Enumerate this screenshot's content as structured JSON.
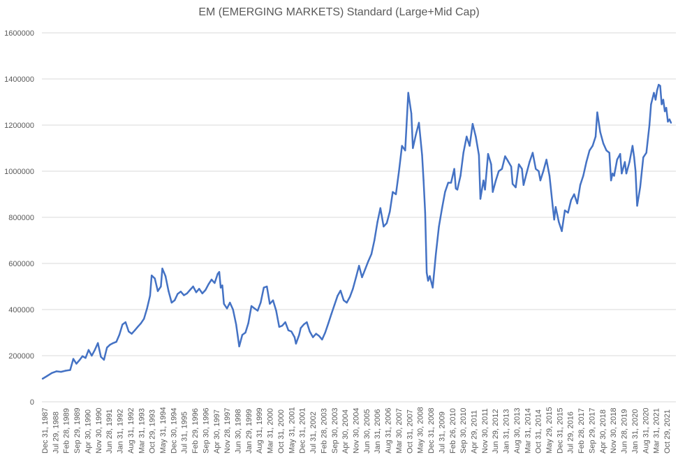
{
  "chart_data": {
    "type": "line",
    "title": "EM (EMERGING MARKETS) Standard (Large+Mid Cap)",
    "xlabel": "",
    "ylabel": "",
    "ylim": [
      0,
      1600000
    ],
    "grid": true,
    "legend": "none",
    "y_ticks": [
      "0",
      "200000",
      "400000",
      "600000",
      "800000",
      "1000000",
      "1200000",
      "1400000",
      "1600000"
    ],
    "x_ticks": [
      "Dec 31, 1987",
      "Jul 29, 1988",
      "Feb 28, 1989",
      "Sep 29, 1989",
      "Apr 30, 1990",
      "Nov 30, 1990",
      "Jun 28, 1991",
      "Jan 31, 1992",
      "Aug 31, 1992",
      "Mar 31, 1993",
      "Oct 29, 1993",
      "May 31, 1994",
      "Dec 30, 1994",
      "Jul 31, 1995",
      "Feb 29, 1996",
      "Sep 30, 1996",
      "Apr 30, 1997",
      "Nov 28, 1997",
      "Jun 30, 1998",
      "Jan 29, 1999",
      "Aug 31, 1999",
      "Mar 31, 2000",
      "Oct 31, 2000",
      "May 31, 2001",
      "Dec 31, 2001",
      "Jul 31, 2002",
      "Feb 28, 2003",
      "Sep 30, 2003",
      "Apr 30, 2004",
      "Nov 30, 2004",
      "Jun 30, 2005",
      "Jan 31, 2006",
      "Aug 31, 2006",
      "Mar 30, 2007",
      "Oct 31, 2007",
      "May 30, 2008",
      "Dec 31, 2008",
      "Jul 31, 2009",
      "Feb 26, 2010",
      "Sep 30, 2010",
      "Apr 29, 2011",
      "Nov 30, 2011",
      "Jun 29, 2012",
      "Jan 31, 2013",
      "Aug 30, 2013",
      "Mar 31, 2014",
      "Oct 31, 2014",
      "May 29, 2015",
      "Dec 31, 2015",
      "Jul 29, 2016",
      "Feb 28, 2017",
      "Sep 29, 2017",
      "Apr 30, 2018",
      "Nov 30, 2018",
      "Jun 28, 2019",
      "Jan 31, 2020",
      "Aug 31, 2020",
      "Mar 31, 2021",
      "Oct 29, 2021"
    ],
    "series": [
      {
        "color": "#4472c4",
        "points": [
          [
            "1987-12-31",
            100000
          ],
          [
            "1988-03-31",
            112000
          ],
          [
            "1988-06-30",
            125000
          ],
          [
            "1988-09-30",
            132000
          ],
          [
            "1988-12-30",
            130000
          ],
          [
            "1989-03-31",
            135000
          ],
          [
            "1989-06-30",
            138000
          ],
          [
            "1989-08-31",
            186000
          ],
          [
            "1989-10-31",
            165000
          ],
          [
            "1989-12-29",
            180000
          ],
          [
            "1990-02-28",
            198000
          ],
          [
            "1990-04-30",
            190000
          ],
          [
            "1990-06-29",
            225000
          ],
          [
            "1990-08-31",
            200000
          ],
          [
            "1990-10-31",
            225000
          ],
          [
            "1990-12-31",
            255000
          ],
          [
            "1991-02-28",
            195000
          ],
          [
            "1991-04-30",
            182000
          ],
          [
            "1991-06-28",
            235000
          ],
          [
            "1991-08-30",
            248000
          ],
          [
            "1991-10-31",
            255000
          ],
          [
            "1991-12-31",
            260000
          ],
          [
            "1992-02-28",
            290000
          ],
          [
            "1992-04-30",
            335000
          ],
          [
            "1992-06-30",
            345000
          ],
          [
            "1992-08-31",
            305000
          ],
          [
            "1992-10-30",
            295000
          ],
          [
            "1992-12-31",
            310000
          ],
          [
            "1993-02-26",
            325000
          ],
          [
            "1993-04-30",
            340000
          ],
          [
            "1993-06-30",
            360000
          ],
          [
            "1993-08-31",
            405000
          ],
          [
            "1993-10-29",
            460000
          ],
          [
            "1993-11-30",
            548000
          ],
          [
            "1994-01-31",
            535000
          ],
          [
            "1994-03-31",
            480000
          ],
          [
            "1994-05-31",
            500000
          ],
          [
            "1994-06-30",
            578000
          ],
          [
            "1994-08-31",
            545000
          ],
          [
            "1994-10-31",
            480000
          ],
          [
            "1994-12-30",
            430000
          ],
          [
            "1995-02-28",
            440000
          ],
          [
            "1995-04-28",
            468000
          ],
          [
            "1995-06-30",
            478000
          ],
          [
            "1995-08-31",
            462000
          ],
          [
            "1995-10-31",
            470000
          ],
          [
            "1995-12-29",
            485000
          ],
          [
            "1996-02-29",
            500000
          ],
          [
            "1996-04-30",
            475000
          ],
          [
            "1996-06-28",
            490000
          ],
          [
            "1996-08-30",
            470000
          ],
          [
            "1996-10-31",
            485000
          ],
          [
            "1996-12-31",
            510000
          ],
          [
            "1997-02-28",
            530000
          ],
          [
            "1997-04-30",
            515000
          ],
          [
            "1997-06-30",
            555000
          ],
          [
            "1997-07-31",
            563000
          ],
          [
            "1997-08-29",
            495000
          ],
          [
            "1997-09-30",
            505000
          ],
          [
            "1997-10-31",
            425000
          ],
          [
            "1997-12-31",
            405000
          ],
          [
            "1998-02-27",
            430000
          ],
          [
            "1998-04-30",
            400000
          ],
          [
            "1998-06-30",
            335000
          ],
          [
            "1998-08-31",
            240000
          ],
          [
            "1998-10-30",
            290000
          ],
          [
            "1998-12-31",
            300000
          ],
          [
            "1999-02-26",
            340000
          ],
          [
            "1999-04-30",
            415000
          ],
          [
            "1999-06-30",
            405000
          ],
          [
            "1999-08-31",
            395000
          ],
          [
            "1999-10-29",
            430000
          ],
          [
            "1999-12-31",
            495000
          ],
          [
            "2000-02-29",
            500000
          ],
          [
            "2000-04-28",
            425000
          ],
          [
            "2000-06-30",
            440000
          ],
          [
            "2000-08-31",
            395000
          ],
          [
            "2000-10-31",
            325000
          ],
          [
            "2000-12-29",
            330000
          ],
          [
            "2001-02-28",
            345000
          ],
          [
            "2001-04-30",
            310000
          ],
          [
            "2001-06-29",
            305000
          ],
          [
            "2001-08-31",
            280000
          ],
          [
            "2001-09-28",
            252000
          ],
          [
            "2001-11-30",
            290000
          ],
          [
            "2001-12-31",
            320000
          ],
          [
            "2002-02-28",
            335000
          ],
          [
            "2002-04-30",
            345000
          ],
          [
            "2002-06-28",
            305000
          ],
          [
            "2002-08-30",
            280000
          ],
          [
            "2002-10-31",
            295000
          ],
          [
            "2002-12-31",
            285000
          ],
          [
            "2003-02-28",
            270000
          ],
          [
            "2003-04-30",
            300000
          ],
          [
            "2003-06-30",
            340000
          ],
          [
            "2003-08-29",
            380000
          ],
          [
            "2003-10-31",
            420000
          ],
          [
            "2003-12-31",
            460000
          ],
          [
            "2004-02-27",
            482000
          ],
          [
            "2004-04-30",
            440000
          ],
          [
            "2004-06-30",
            430000
          ],
          [
            "2004-08-31",
            455000
          ],
          [
            "2004-10-29",
            490000
          ],
          [
            "2004-12-31",
            540000
          ],
          [
            "2005-02-28",
            590000
          ],
          [
            "2005-04-29",
            540000
          ],
          [
            "2005-06-30",
            575000
          ],
          [
            "2005-08-31",
            610000
          ],
          [
            "2005-10-31",
            640000
          ],
          [
            "2005-12-30",
            700000
          ],
          [
            "2006-02-28",
            780000
          ],
          [
            "2006-04-28",
            840000
          ],
          [
            "2006-06-30",
            760000
          ],
          [
            "2006-08-31",
            775000
          ],
          [
            "2006-10-31",
            825000
          ],
          [
            "2006-12-29",
            910000
          ],
          [
            "2007-02-28",
            900000
          ],
          [
            "2007-04-30",
            1000000
          ],
          [
            "2007-06-29",
            1110000
          ],
          [
            "2007-08-31",
            1090000
          ],
          [
            "2007-10-31",
            1340000
          ],
          [
            "2007-12-31",
            1250000
          ],
          [
            "2008-01-31",
            1100000
          ],
          [
            "2008-03-31",
            1160000
          ],
          [
            "2008-05-30",
            1210000
          ],
          [
            "2008-07-31",
            1070000
          ],
          [
            "2008-08-29",
            960000
          ],
          [
            "2008-09-30",
            820000
          ],
          [
            "2008-10-31",
            560000
          ],
          [
            "2008-11-28",
            525000
          ],
          [
            "2008-12-31",
            545000
          ],
          [
            "2009-02-27",
            495000
          ],
          [
            "2009-04-30",
            640000
          ],
          [
            "2009-06-30",
            760000
          ],
          [
            "2009-08-31",
            840000
          ],
          [
            "2009-10-30",
            910000
          ],
          [
            "2009-12-31",
            950000
          ],
          [
            "2010-02-26",
            950000
          ],
          [
            "2010-04-30",
            1010000
          ],
          [
            "2010-05-31",
            925000
          ],
          [
            "2010-06-30",
            920000
          ],
          [
            "2010-08-31",
            980000
          ],
          [
            "2010-10-29",
            1080000
          ],
          [
            "2010-12-31",
            1150000
          ],
          [
            "2011-02-28",
            1110000
          ],
          [
            "2011-04-29",
            1205000
          ],
          [
            "2011-06-30",
            1150000
          ],
          [
            "2011-08-31",
            1070000
          ],
          [
            "2011-09-30",
            880000
          ],
          [
            "2011-11-30",
            960000
          ],
          [
            "2011-12-30",
            920000
          ],
          [
            "2012-02-29",
            1075000
          ],
          [
            "2012-04-30",
            1030000
          ],
          [
            "2012-05-31",
            910000
          ],
          [
            "2012-07-31",
            960000
          ],
          [
            "2012-09-28",
            1000000
          ],
          [
            "2012-11-30",
            1010000
          ],
          [
            "2013-01-31",
            1065000
          ],
          [
            "2013-03-28",
            1045000
          ],
          [
            "2013-05-31",
            1020000
          ],
          [
            "2013-06-28",
            945000
          ],
          [
            "2013-08-30",
            930000
          ],
          [
            "2013-10-31",
            1030000
          ],
          [
            "2013-12-31",
            1010000
          ],
          [
            "2014-01-31",
            940000
          ],
          [
            "2014-03-31",
            990000
          ],
          [
            "2014-05-30",
            1040000
          ],
          [
            "2014-07-31",
            1080000
          ],
          [
            "2014-09-30",
            1010000
          ],
          [
            "2014-11-28",
            1000000
          ],
          [
            "2014-12-31",
            960000
          ],
          [
            "2015-02-27",
            1000000
          ],
          [
            "2015-04-30",
            1050000
          ],
          [
            "2015-06-30",
            980000
          ],
          [
            "2015-08-31",
            850000
          ],
          [
            "2015-09-30",
            790000
          ],
          [
            "2015-10-30",
            845000
          ],
          [
            "2015-12-31",
            780000
          ],
          [
            "2016-02-29",
            740000
          ],
          [
            "2016-04-29",
            830000
          ],
          [
            "2016-06-30",
            820000
          ],
          [
            "2016-08-31",
            875000
          ],
          [
            "2016-10-31",
            900000
          ],
          [
            "2016-12-30",
            860000
          ],
          [
            "2017-02-28",
            940000
          ],
          [
            "2017-04-28",
            980000
          ],
          [
            "2017-06-30",
            1040000
          ],
          [
            "2017-08-31",
            1090000
          ],
          [
            "2017-10-31",
            1110000
          ],
          [
            "2017-12-29",
            1150000
          ],
          [
            "2018-01-31",
            1255000
          ],
          [
            "2018-03-30",
            1170000
          ],
          [
            "2018-05-31",
            1120000
          ],
          [
            "2018-07-31",
            1090000
          ],
          [
            "2018-09-28",
            1080000
          ],
          [
            "2018-10-31",
            960000
          ],
          [
            "2018-11-30",
            990000
          ],
          [
            "2018-12-31",
            980000
          ],
          [
            "2019-02-28",
            1050000
          ],
          [
            "2019-04-30",
            1075000
          ],
          [
            "2019-05-31",
            990000
          ],
          [
            "2019-07-31",
            1040000
          ],
          [
            "2019-08-30",
            990000
          ],
          [
            "2019-10-31",
            1040000
          ],
          [
            "2019-12-31",
            1110000
          ],
          [
            "2020-01-31",
            1060000
          ],
          [
            "2020-02-28",
            1000000
          ],
          [
            "2020-03-31",
            850000
          ],
          [
            "2020-05-29",
            930000
          ],
          [
            "2020-07-31",
            1060000
          ],
          [
            "2020-09-30",
            1080000
          ],
          [
            "2020-11-30",
            1200000
          ],
          [
            "2020-12-31",
            1290000
          ],
          [
            "2021-02-26",
            1340000
          ],
          [
            "2021-03-31",
            1310000
          ],
          [
            "2021-04-30",
            1350000
          ],
          [
            "2021-05-31",
            1375000
          ],
          [
            "2021-06-30",
            1370000
          ],
          [
            "2021-07-30",
            1290000
          ],
          [
            "2021-08-31",
            1310000
          ],
          [
            "2021-09-30",
            1260000
          ],
          [
            "2021-10-29",
            1275000
          ],
          [
            "2021-11-30",
            1215000
          ],
          [
            "2021-12-31",
            1225000
          ],
          [
            "2022-01-31",
            1210000
          ]
        ]
      }
    ]
  }
}
